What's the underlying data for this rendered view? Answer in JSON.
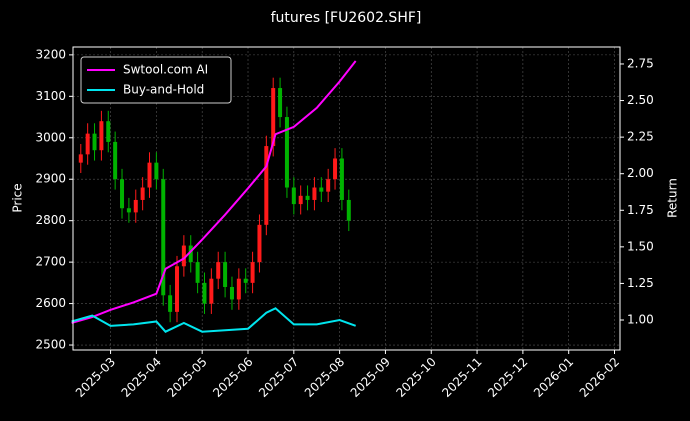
{
  "chart_data": {
    "type": "candlestick",
    "title": "futures [FU2602.SHF]",
    "ylabel": "Price",
    "y2label": "Return",
    "up_color": "#ff1a1a",
    "down_color": "#00b300",
    "x": [
      -0.65,
      -0.5,
      -0.35,
      -0.2,
      -0.05,
      0.1,
      0.25,
      0.4,
      0.55,
      0.7,
      0.85,
      1.0,
      1.15,
      1.3,
      1.45,
      1.6,
      1.75,
      1.9,
      2.05,
      2.2,
      2.35,
      2.5,
      2.65,
      2.8,
      2.95,
      3.1,
      3.25,
      3.4,
      3.55,
      3.7,
      3.85,
      4.0,
      4.15,
      4.3,
      4.45,
      4.6,
      4.75,
      4.9,
      5.05,
      5.2
    ],
    "open": [
      2940,
      2960,
      3010,
      2970,
      3040,
      2990,
      2900,
      2830,
      2820,
      2850,
      2880,
      2940,
      2900,
      2620,
      2580,
      2690,
      2740,
      2700,
      2650,
      2600,
      2660,
      2700,
      2640,
      2610,
      2660,
      2650,
      2700,
      2790,
      2980,
      3120,
      3050,
      2880,
      2840,
      2860,
      2850,
      2880,
      2870,
      2900,
      2950,
      2850
    ],
    "high": [
      2985,
      3035,
      3035,
      3065,
      3065,
      3015,
      2925,
      2855,
      2875,
      2905,
      2965,
      2965,
      2925,
      2645,
      2715,
      2765,
      2765,
      2725,
      2675,
      2685,
      2725,
      2725,
      2665,
      2685,
      2685,
      2725,
      2815,
      3005,
      3145,
      3145,
      3075,
      2905,
      2885,
      2885,
      2905,
      2905,
      2925,
      2975,
      2975,
      2875
    ],
    "low": [
      2915,
      2935,
      2945,
      2945,
      2965,
      2875,
      2805,
      2795,
      2795,
      2825,
      2855,
      2875,
      2595,
      2555,
      2555,
      2665,
      2675,
      2625,
      2575,
      2575,
      2635,
      2615,
      2585,
      2585,
      2625,
      2625,
      2675,
      2765,
      2955,
      3025,
      2855,
      2815,
      2815,
      2825,
      2825,
      2845,
      2845,
      2875,
      2825,
      2775
    ],
    "close": [
      2960,
      3010,
      2970,
      3040,
      2990,
      2900,
      2830,
      2820,
      2850,
      2880,
      2940,
      2900,
      2620,
      2580,
      2690,
      2740,
      2700,
      2650,
      2600,
      2660,
      2700,
      2640,
      2610,
      2660,
      2650,
      2700,
      2790,
      2980,
      3120,
      3050,
      2880,
      2840,
      2860,
      2850,
      2880,
      2870,
      2900,
      2950,
      2850,
      2800
    ],
    "series": [
      {
        "name": "Swtool.com AI",
        "color": "#ff00ff",
        "axis": "y2",
        "x": [
          -0.85,
          -0.4,
          0,
          0.5,
          1,
          1.2,
          1.6,
          2,
          2.5,
          3,
          3.4,
          3.6,
          4,
          4.5,
          5,
          5.35
        ],
        "values": [
          0.98,
          1.02,
          1.07,
          1.12,
          1.18,
          1.35,
          1.42,
          1.55,
          1.72,
          1.9,
          2.05,
          2.27,
          2.32,
          2.45,
          2.63,
          2.77
        ]
      },
      {
        "name": "Buy-and-Hold",
        "color": "#00e5ee",
        "axis": "y2",
        "x": [
          -0.85,
          -0.4,
          0,
          0.5,
          1,
          1.2,
          1.6,
          2,
          2.5,
          3,
          3.4,
          3.6,
          4,
          4.5,
          5,
          5.35
        ],
        "values": [
          0.99,
          1.03,
          0.96,
          0.97,
          0.99,
          0.92,
          0.98,
          0.92,
          0.93,
          0.94,
          1.05,
          1.08,
          0.97,
          0.97,
          1.0,
          0.96
        ]
      }
    ],
    "xlim": [
      -0.82,
      11.12
    ],
    "xticks": [
      {
        "value": 0,
        "label": "2025-03"
      },
      {
        "value": 1,
        "label": "2025-04"
      },
      {
        "value": 2,
        "label": "2025-05"
      },
      {
        "value": 3,
        "label": "2025-06"
      },
      {
        "value": 4,
        "label": "2025-07"
      },
      {
        "value": 5,
        "label": "2025-08"
      },
      {
        "value": 6,
        "label": "2025-09"
      },
      {
        "value": 7,
        "label": "2025-10"
      },
      {
        "value": 8,
        "label": "2025-11"
      },
      {
        "value": 9,
        "label": "2025-12"
      },
      {
        "value": 10,
        "label": "2026-01"
      },
      {
        "value": 11,
        "label": "2026-02"
      }
    ],
    "ylim": [
      2488,
      3219
    ],
    "yticks": [
      2500,
      2600,
      2700,
      2800,
      2900,
      3000,
      3100,
      3200
    ],
    "y2lim": [
      0.795,
      2.866
    ],
    "y2ticks": [
      {
        "value": 1,
        "label": "1.00"
      },
      {
        "value": 1.25,
        "label": "1.25"
      },
      {
        "value": 1.5,
        "label": "1.50"
      },
      {
        "value": 1.75,
        "label": "1.75"
      },
      {
        "value": 2,
        "label": "2.00"
      },
      {
        "value": 2.25,
        "label": "2.25"
      },
      {
        "value": 2.5,
        "label": "2.50"
      },
      {
        "value": 2.75,
        "label": "2.75"
      }
    ],
    "grid": true,
    "legend": "upper left"
  }
}
